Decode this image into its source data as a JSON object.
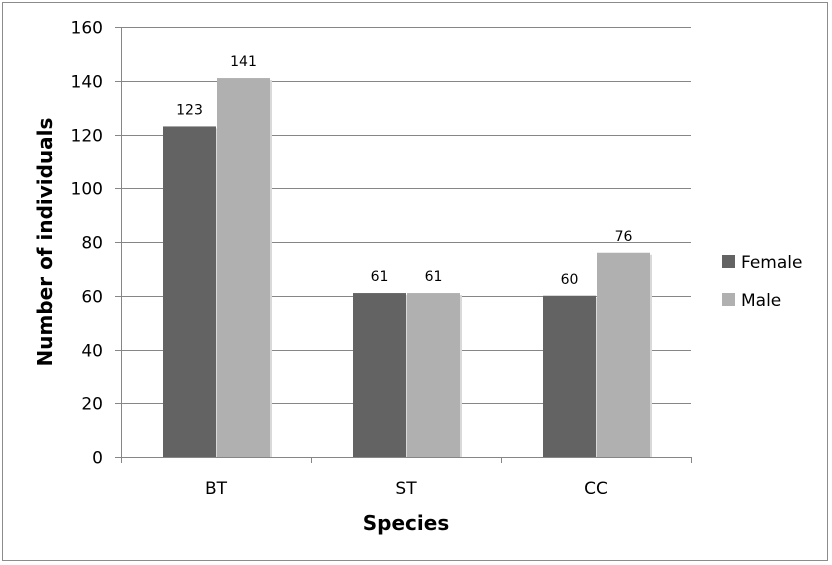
{
  "chart_data": {
    "type": "bar",
    "title": "",
    "xlabel": "Species",
    "ylabel": "Number of individuals",
    "categories": [
      "BT",
      "ST",
      "CC"
    ],
    "series": [
      {
        "name": "Female",
        "color": "#636363",
        "values": [
          123,
          61,
          60
        ]
      },
      {
        "name": "Male",
        "color": "#b0b0b0",
        "values": [
          141,
          61,
          76
        ]
      }
    ],
    "ylim": [
      0,
      160
    ],
    "yticks": [
      0,
      20,
      40,
      60,
      80,
      100,
      120,
      140,
      160
    ],
    "grid": true,
    "legend": "right"
  }
}
